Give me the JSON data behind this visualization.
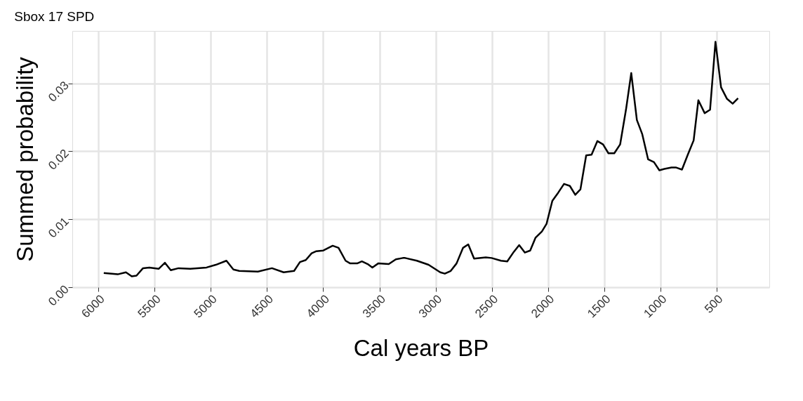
{
  "chart_data": {
    "type": "line",
    "title": "Sbox 17 SPD",
    "xlabel": "Cal years BP",
    "ylabel": "Summed probability",
    "x": [
      5952,
      5828,
      5755,
      5703,
      5661,
      5603,
      5547,
      5464,
      5408,
      5356,
      5287,
      5183,
      5038,
      4955,
      4861,
      4799,
      4747,
      4581,
      4456,
      4352,
      4259,
      4207,
      4155,
      4103,
      4061,
      3999,
      3916,
      3864,
      3801,
      3760,
      3698,
      3656,
      3604,
      3563,
      3511,
      3417,
      3354,
      3292,
      3271,
      3167,
      3063,
      2959,
      2918,
      2866,
      2814,
      2756,
      2710,
      2658,
      2554,
      2502,
      2419,
      2363,
      2305,
      2257,
      2207,
      2159,
      2111,
      2055,
      2014,
      1962,
      1910,
      1858,
      1806,
      1758,
      1712,
      1661,
      1613,
      1561,
      1511,
      1463,
      1411,
      1359,
      1307,
      1260,
      1210,
      1162,
      1110,
      1058,
      1010,
      965,
      902,
      860,
      809,
      757,
      705,
      663,
      607,
      559,
      511,
      461,
      408,
      358,
      310
    ],
    "series": [
      {
        "color": "#000000",
        "values": [
          0.0021,
          0.0019,
          0.0022,
          0.0016,
          0.0017,
          0.0028,
          0.0029,
          0.0027,
          0.0036,
          0.0025,
          0.0028,
          0.0027,
          0.0029,
          0.0033,
          0.0039,
          0.0026,
          0.0024,
          0.0023,
          0.0028,
          0.0022,
          0.0024,
          0.0037,
          0.004,
          0.005,
          0.0053,
          0.0054,
          0.0061,
          0.0058,
          0.0039,
          0.0035,
          0.0035,
          0.0038,
          0.0034,
          0.0029,
          0.0035,
          0.0034,
          0.0041,
          0.0043,
          0.0043,
          0.0039,
          0.0033,
          0.0022,
          0.002,
          0.0024,
          0.0035,
          0.0058,
          0.0063,
          0.0042,
          0.0044,
          0.0043,
          0.0039,
          0.0038,
          0.0052,
          0.0062,
          0.0051,
          0.0054,
          0.0073,
          0.0082,
          0.0093,
          0.0127,
          0.0139,
          0.0152,
          0.0149,
          0.0136,
          0.0144,
          0.0194,
          0.0195,
          0.0215,
          0.021,
          0.0197,
          0.0197,
          0.021,
          0.0261,
          0.0315,
          0.0246,
          0.0225,
          0.0188,
          0.0184,
          0.0172,
          0.0174,
          0.0176,
          0.0176,
          0.0173,
          0.0195,
          0.0216,
          0.0275,
          0.0256,
          0.0261,
          0.0361,
          0.0294,
          0.0277,
          0.027,
          0.0278
        ]
      }
    ],
    "xlim": [
      6232,
      32
    ],
    "xticks": [
      6000,
      5500,
      5000,
      4500,
      4000,
      3500,
      3000,
      2500,
      2000,
      1500,
      1000,
      500
    ],
    "ylim": [
      0,
      0.0377
    ],
    "yticks": [
      {
        "value": 0,
        "label": "0.00"
      },
      {
        "value": 0.01,
        "label": "0.01"
      },
      {
        "value": 0.02,
        "label": "0.02"
      },
      {
        "value": 0.03,
        "label": "0.03"
      }
    ],
    "grid": true,
    "line_style": "solid",
    "marker": "none"
  }
}
